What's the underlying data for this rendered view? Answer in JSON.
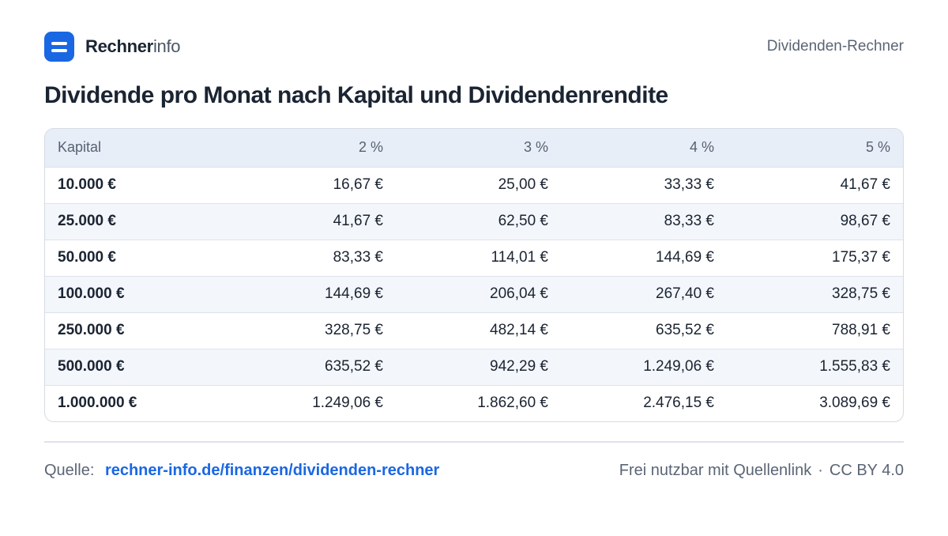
{
  "brand": {
    "name_bold": "Rechner",
    "name_light": "info"
  },
  "header": {
    "right_label": "Dividenden-Rechner"
  },
  "page_title": "Dividende pro Monat nach Kapital und Dividendenrendite",
  "table": {
    "columns": [
      "Kapital",
      "2 %",
      "3 %",
      "4 %",
      "5 %"
    ],
    "rows": [
      [
        "10.000 €",
        "16,67 €",
        "25,00 €",
        "33,33 €",
        "41,67 €"
      ],
      [
        "25.000 €",
        "41,67 €",
        "62,50 €",
        "83,33 €",
        "98,67 €"
      ],
      [
        "50.000 €",
        "83,33 €",
        "114,01 €",
        "144,69 €",
        "175,37 €"
      ],
      [
        "100.000 €",
        "144,69 €",
        "206,04 €",
        "267,40 €",
        "328,75 €"
      ],
      [
        "250.000 €",
        "328,75 €",
        "482,14 €",
        "635,52 €",
        "788,91 €"
      ],
      [
        "500.000 €",
        "635,52 €",
        "942,29 €",
        "1.249,06 €",
        "1.555,83 €"
      ],
      [
        "1.000.000 €",
        "1.249,06 €",
        "1.862,60 €",
        "2.476,15 €",
        "3.089,69 €"
      ]
    ]
  },
  "footer": {
    "source_label": "Quelle:",
    "source_link": "rechner-info.de/finanzen/dividenden-rechner",
    "license_text": "Frei nutzbar mit Quellenlink",
    "separator": "·",
    "license": "CC BY 4.0"
  },
  "colors": {
    "accent": "#1a67e3",
    "header_row_bg": "#e8eef7",
    "alt_row_bg": "#f3f6fb"
  },
  "icons": {
    "logo": "equals-logo-icon"
  }
}
